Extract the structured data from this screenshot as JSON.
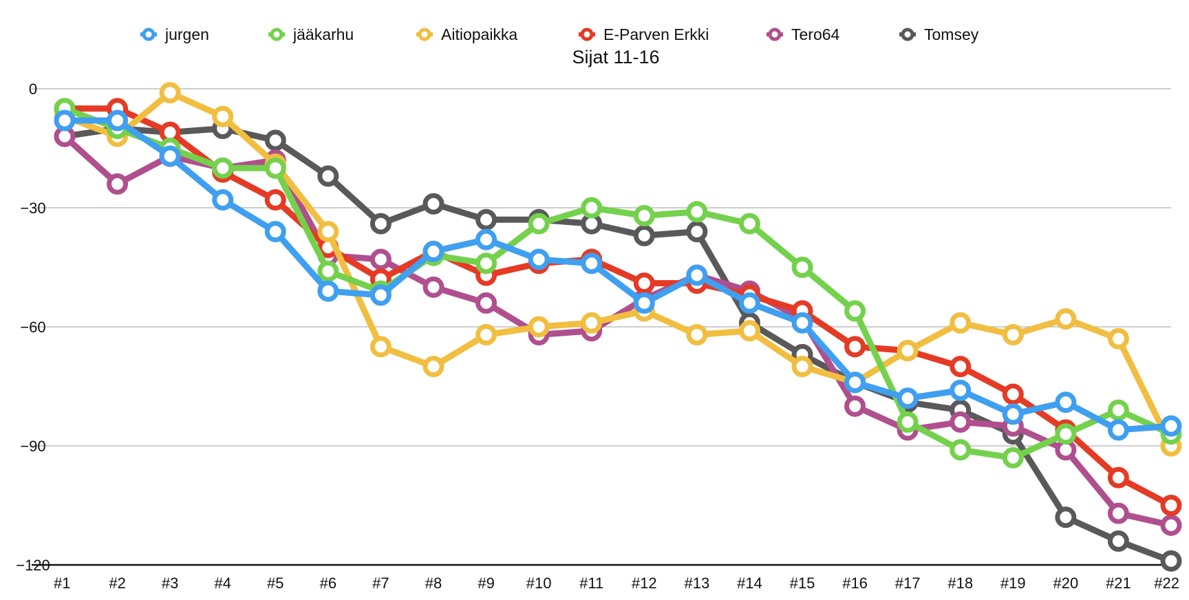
{
  "chart_data": {
    "type": "line",
    "title": "Sijat 11-16",
    "xlabel": "",
    "ylabel": "",
    "categories": [
      "#1",
      "#2",
      "#3",
      "#4",
      "#5",
      "#6",
      "#7",
      "#8",
      "#9",
      "#10",
      "#11",
      "#12",
      "#13",
      "#14",
      "#15",
      "#16",
      "#17",
      "#18",
      "#19",
      "#20",
      "#21",
      "#22"
    ],
    "ylim": [
      -120,
      0
    ],
    "yticks": [
      0,
      -30,
      -60,
      -90,
      -120
    ],
    "ytick_labels": [
      "0",
      "−30",
      "−60",
      "−90",
      "−120"
    ],
    "grid": true,
    "legend_position": "top",
    "series": [
      {
        "name": "Tomsey",
        "color": "#595959",
        "values": [
          -12,
          -10,
          -11,
          -10,
          -13,
          -22,
          -34,
          -29,
          -33,
          -33,
          -34,
          -37,
          -36,
          -59,
          -67,
          -74,
          -79,
          -81,
          -87,
          -108,
          -114,
          -119
        ]
      },
      {
        "name": "Tero64",
        "color": "#b04f8e",
        "values": [
          -12,
          -24,
          -17,
          -20,
          -18,
          -42,
          -43,
          -50,
          -54,
          -62,
          -61,
          -53,
          -47,
          -51,
          -58,
          -80,
          -86,
          -84,
          -85,
          -91,
          -107,
          -110
        ]
      },
      {
        "name": "E-Parven Erkki",
        "color": "#e53a24",
        "values": [
          -5,
          -5,
          -11,
          -21,
          -28,
          -40,
          -48,
          -41,
          -47,
          -44,
          -43,
          -49,
          -49,
          -52,
          -56,
          -65,
          -66,
          -70,
          -77,
          -86,
          -98,
          -105
        ]
      },
      {
        "name": "Aitiopaikka",
        "color": "#f1be40",
        "values": [
          -7,
          -12,
          -1,
          -7,
          -19,
          -36,
          -65,
          -70,
          -62,
          -60,
          -59,
          -56,
          -62,
          -61,
          -70,
          -74,
          -66,
          -59,
          -62,
          -58,
          -63,
          -90
        ]
      },
      {
        "name": "jääkarhu",
        "color": "#74d14c",
        "values": [
          -5,
          -10,
          -15,
          -20,
          -20,
          -46,
          -51,
          -42,
          -44,
          -34,
          -30,
          -32,
          -31,
          -34,
          -45,
          -56,
          -84,
          -91,
          -93,
          -87,
          -81,
          -87
        ]
      },
      {
        "name": "jurgen",
        "color": "#3f9ff0",
        "values": [
          -8,
          -8,
          -17,
          -28,
          -36,
          -51,
          -52,
          -41,
          -38,
          -43,
          -44,
          -54,
          -47,
          -54,
          -59,
          -74,
          -78,
          -76,
          -82,
          -79,
          -86,
          -85
        ]
      }
    ],
    "legend_order": [
      "jurgen",
      "jääkarhu",
      "Aitiopaikka",
      "E-Parven Erkki",
      "Tero64",
      "Tomsey"
    ]
  }
}
